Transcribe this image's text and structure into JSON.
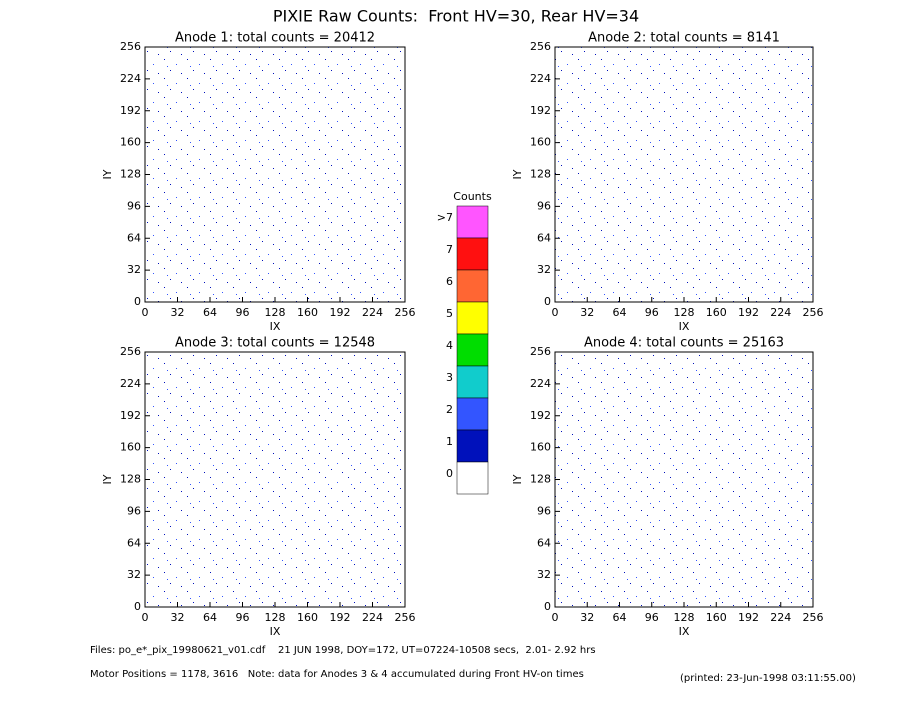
{
  "chart_data": {
    "type": "pixel-map",
    "title": "PIXIE Raw Counts:  Front HV=30, Rear HV=34",
    "panels": [
      {
        "title": "Anode 1: total counts = 20412",
        "xlabel": "IX",
        "ylabel": "IY",
        "xlim": [
          0,
          256
        ],
        "ylim": [
          0,
          256
        ],
        "xticks": [
          0,
          32,
          64,
          96,
          128,
          160,
          192,
          224,
          256
        ],
        "yticks": [
          0,
          32,
          64,
          96,
          128,
          160,
          192,
          224,
          256
        ]
      },
      {
        "title": "Anode 2: total counts = 8141",
        "xlabel": "IX",
        "ylabel": "IY",
        "xlim": [
          0,
          256
        ],
        "ylim": [
          0,
          256
        ],
        "xticks": [
          0,
          32,
          64,
          96,
          128,
          160,
          192,
          224,
          256
        ],
        "yticks": [
          0,
          32,
          64,
          96,
          128,
          160,
          192,
          224,
          256
        ]
      },
      {
        "title": "Anode 3: total counts = 12548",
        "xlabel": "IX",
        "ylabel": "IY",
        "xlim": [
          0,
          256
        ],
        "ylim": [
          0,
          256
        ],
        "xticks": [
          0,
          32,
          64,
          96,
          128,
          160,
          192,
          224,
          256
        ],
        "yticks": [
          0,
          32,
          64,
          96,
          128,
          160,
          192,
          224,
          256
        ]
      },
      {
        "title": "Anode 4: total counts = 25163",
        "xlabel": "IX",
        "ylabel": "IY",
        "xlim": [
          0,
          256
        ],
        "ylim": [
          0,
          256
        ],
        "xticks": [
          0,
          32,
          64,
          96,
          128,
          160,
          192,
          224,
          256
        ],
        "yticks": [
          0,
          32,
          64,
          96,
          128,
          160,
          192,
          224,
          256
        ]
      }
    ],
    "colorbar": {
      "title": "Counts",
      "levels": [
        {
          "label": ">7",
          "color": "#ff55ff"
        },
        {
          "label": "7",
          "color": "#ff1010"
        },
        {
          "label": "6",
          "color": "#ff6633"
        },
        {
          "label": "5",
          "color": "#ffff00"
        },
        {
          "label": "4",
          "color": "#00dd00"
        },
        {
          "label": "3",
          "color": "#11cccc"
        },
        {
          "label": "2",
          "color": "#3355ff"
        },
        {
          "label": "1",
          "color": "#0011bb"
        },
        {
          "label": "0",
          "color": "#ffffff"
        }
      ]
    },
    "footer": [
      "Files: po_e*_pix_19980621_v01.cdf    21 JUN 1998, DOY=172, UT=07224-10508 secs,  2.01- 2.92 hrs",
      "Motor Positions = 1178, 3616   Note: data for Anodes 3 & 4 accumulated during Front HV-on times"
    ],
    "printed": "(printed: 23-Jun-1998 03:11:55.00)"
  }
}
